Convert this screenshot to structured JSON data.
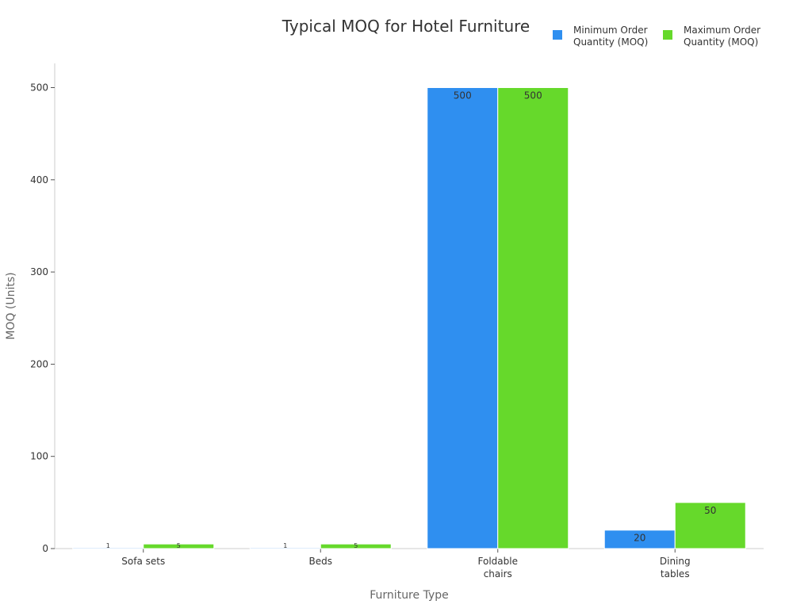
{
  "chart_data": {
    "type": "bar",
    "title": "Typical MOQ for Hotel Furniture",
    "xlabel": "Furniture Type",
    "ylabel": "MOQ (Units)",
    "categories": [
      "Sofa sets",
      "Beds",
      "Foldable chairs",
      "Dining tables"
    ],
    "category_lines": [
      [
        "Sofa sets"
      ],
      [
        "Beds"
      ],
      [
        "Foldable",
        "chairs"
      ],
      [
        "Dining",
        "tables"
      ]
    ],
    "series": [
      {
        "name": "Minimum Order Quantity (MOQ)",
        "name_lines": [
          "Minimum Order",
          "Quantity (MOQ)"
        ],
        "color": "#2f8ff0",
        "values": [
          1,
          1,
          500,
          20
        ],
        "labels": [
          "1",
          "1",
          "500",
          "20"
        ]
      },
      {
        "name": "Maximum Order Quantity (MOQ)",
        "name_lines": [
          "Maximum Order",
          "Quantity (MOQ)"
        ],
        "color": "#66d92b",
        "values": [
          5,
          5,
          500,
          50
        ],
        "labels": [
          "5",
          "5",
          "500",
          "50"
        ]
      }
    ],
    "ylim": [
      0,
      525
    ],
    "yticks": [
      0,
      100,
      200,
      300,
      400,
      500
    ],
    "grid": false,
    "legend_position": "top-right"
  }
}
